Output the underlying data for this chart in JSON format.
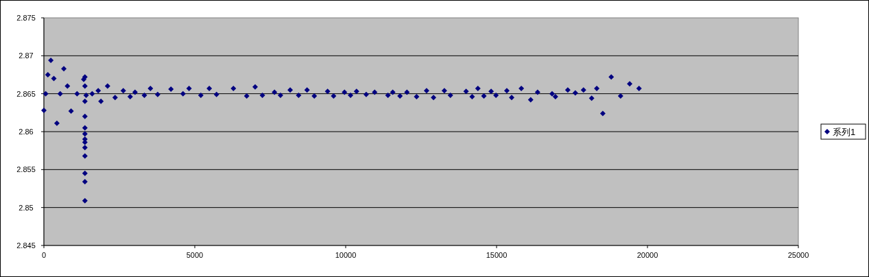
{
  "chart_data": {
    "type": "scatter",
    "xlim": [
      0,
      25000
    ],
    "ylim": [
      2.845,
      2.875
    ],
    "xticks": [
      0,
      5000,
      10000,
      15000,
      20000,
      25000
    ],
    "yticks": [
      2.845,
      2.85,
      2.855,
      2.86,
      2.865,
      2.87,
      2.875
    ],
    "grid": "y",
    "legend": "right",
    "marker": "diamond",
    "x": [
      0,
      60,
      130,
      230,
      330,
      430,
      540,
      660,
      780,
      900,
      1100,
      1320,
      1360,
      1360,
      1360,
      1360,
      1360,
      1360,
      1360,
      1360,
      1360,
      1360,
      1360,
      1360,
      1360,
      1400,
      1600,
      1800,
      1890,
      2110,
      2360,
      2630,
      2860,
      3020,
      3330,
      3530,
      3770,
      4210,
      4610,
      4810,
      5200,
      5480,
      5720,
      6280,
      6720,
      7000,
      7240,
      7640,
      7840,
      8160,
      8440,
      8720,
      8960,
      9400,
      9600,
      9960,
      10160,
      10360,
      10680,
      10960,
      11400,
      11560,
      11800,
      12030,
      12350,
      12680,
      12910,
      13270,
      13470,
      13990,
      14190,
      14380,
      14580,
      14820,
      14980,
      15340,
      15500,
      15820,
      16130,
      16360,
      16840,
      16950,
      17360,
      17610,
      17880,
      18150,
      18320,
      18520,
      18800,
      19110,
      19410,
      19720
    ],
    "series": [
      {
        "name": "系列1",
        "color": "#000080",
        "values": [
          2.8628,
          2.865,
          2.8675,
          2.8694,
          2.867,
          2.8611,
          2.865,
          2.8683,
          2.866,
          2.8627,
          2.865,
          2.8669,
          2.8672,
          2.866,
          2.864,
          2.862,
          2.8605,
          2.8597,
          2.859,
          2.8586,
          2.8579,
          2.8568,
          2.8545,
          2.8534,
          2.8509,
          2.8648,
          2.865,
          2.8654,
          2.864,
          2.866,
          2.8645,
          2.8654,
          2.8646,
          2.8652,
          2.8648,
          2.8657,
          2.8649,
          2.8656,
          2.865,
          2.8657,
          2.8648,
          2.8657,
          2.8649,
          2.8657,
          2.8647,
          2.8659,
          2.8648,
          2.8652,
          2.8648,
          2.8655,
          2.8648,
          2.8655,
          2.8647,
          2.8653,
          2.8647,
          2.8652,
          2.8648,
          2.8653,
          2.8649,
          2.8652,
          2.8648,
          2.8652,
          2.8647,
          2.8652,
          2.8646,
          2.8654,
          2.8645,
          2.8654,
          2.8648,
          2.8653,
          2.8646,
          2.8657,
          2.8647,
          2.8653,
          2.8648,
          2.8654,
          2.8645,
          2.8657,
          2.8642,
          2.8652,
          2.865,
          2.8646,
          2.8655,
          2.8651,
          2.8655,
          2.8644,
          2.8657,
          2.8624,
          2.8672,
          2.8647,
          2.8663,
          2.8657
        ]
      }
    ]
  }
}
